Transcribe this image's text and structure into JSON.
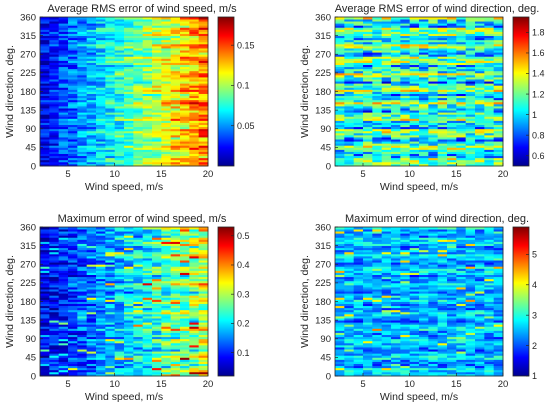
{
  "colormap": [
    "#00008f",
    "#0000ff",
    "#0080ff",
    "#00ffff",
    "#80ff80",
    "#ffff00",
    "#ff8000",
    "#ff0000",
    "#800000"
  ],
  "chart_data": [
    {
      "type": "heatmap",
      "title": "Average RMS error of wind speed, m/s",
      "xlabel": "Wind speed, m/s",
      "ylabel": "Wind direction, deg.",
      "xlim": [
        2,
        20
      ],
      "ylim": [
        0,
        360
      ],
      "xticks": [
        5,
        10,
        15,
        20
      ],
      "yticks": [
        0,
        45,
        90,
        135,
        180,
        225,
        270,
        315,
        360
      ],
      "clim": [
        0.0,
        0.185
      ],
      "cticks": [
        0.05,
        0.1,
        0.15
      ],
      "cticklabels": [
        "0.05",
        "0.1",
        "0.15"
      ],
      "pattern": "increases with wind speed",
      "seed": 11
    },
    {
      "type": "heatmap",
      "title": "Average RMS error of wind direction, deg.",
      "xlabel": "Wind speed, m/s",
      "ylabel": "Wind direction, deg.",
      "xlim": [
        2,
        20
      ],
      "ylim": [
        0,
        360
      ],
      "xticks": [
        5,
        10,
        15,
        20
      ],
      "yticks": [
        0,
        45,
        90,
        135,
        180,
        225,
        270,
        315,
        360
      ],
      "clim": [
        0.5,
        1.95
      ],
      "cticks": [
        0.6,
        0.8,
        1,
        1.2,
        1.4,
        1.6,
        1.8
      ],
      "cticklabels": [
        "0.6",
        "0.8",
        "1",
        "1.2",
        "1.4",
        "1.6",
        "1.8"
      ],
      "pattern": "horizontal banding by direction",
      "seed": 23
    },
    {
      "type": "heatmap",
      "title": "Maximum error of wind speed, m/s",
      "xlabel": "Wind speed, m/s",
      "ylabel": "Wind direction, deg.",
      "xlim": [
        2,
        20
      ],
      "ylim": [
        0,
        360
      ],
      "xticks": [
        5,
        10,
        15,
        20
      ],
      "yticks": [
        0,
        45,
        90,
        135,
        180,
        225,
        270,
        315,
        360
      ],
      "clim": [
        0.02,
        0.53
      ],
      "cticks": [
        0.1,
        0.2,
        0.3,
        0.4,
        0.5
      ],
      "cticklabels": [
        "0.1",
        "0.2",
        "0.3",
        "0.4",
        "0.5"
      ],
      "pattern": "increases with wind speed",
      "seed": 37
    },
    {
      "type": "heatmap",
      "title": "Maximum error of wind direction, deg.",
      "xlabel": "Wind speed, m/s",
      "ylabel": "Wind direction, deg.",
      "xlim": [
        2,
        20
      ],
      "ylim": [
        0,
        360
      ],
      "xticks": [
        5,
        10,
        15,
        20
      ],
      "yticks": [
        0,
        45,
        90,
        135,
        180,
        225,
        270,
        315,
        360
      ],
      "clim": [
        1.0,
        5.9
      ],
      "cticks": [
        1,
        2,
        3,
        4,
        5
      ],
      "cticklabels": [
        "1",
        "2",
        "3",
        "4",
        "5"
      ],
      "pattern": "mostly uniform with scattered highs",
      "seed": 51
    }
  ]
}
